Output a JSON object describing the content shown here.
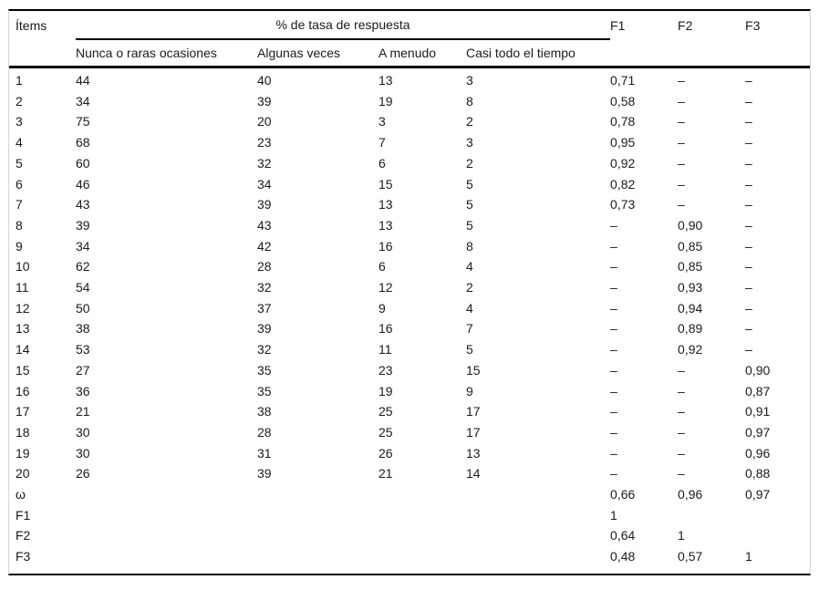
{
  "page": {
    "background": "#ffffff",
    "text_color": "#1b1b1b",
    "rule_color": "#000000",
    "frame_color": "#d6d6d6"
  },
  "table": {
    "header": {
      "items_label": "Ítems",
      "group_label": "% de tasa de respuesta",
      "subcolumns": [
        "Nunca o raras ocasiones",
        "Algunas veces",
        "A menudo",
        "Casi todo el tiempo"
      ],
      "factor_columns": [
        "F1",
        "F2",
        "F3"
      ]
    },
    "rows": [
      {
        "item": "1",
        "responses": [
          "44",
          "40",
          "13",
          "3"
        ],
        "factors": [
          "0,71",
          "–",
          "–"
        ]
      },
      {
        "item": "2",
        "responses": [
          "34",
          "39",
          "19",
          "8"
        ],
        "factors": [
          "0,58",
          "–",
          "–"
        ]
      },
      {
        "item": "3",
        "responses": [
          "75",
          "20",
          "3",
          "2"
        ],
        "factors": [
          "0,78",
          "–",
          "–"
        ]
      },
      {
        "item": "4",
        "responses": [
          "68",
          "23",
          "7",
          "3"
        ],
        "factors": [
          "0,95",
          "–",
          "–"
        ]
      },
      {
        "item": "5",
        "responses": [
          "60",
          "32",
          "6",
          "2"
        ],
        "factors": [
          "0,92",
          "–",
          "–"
        ]
      },
      {
        "item": "6",
        "responses": [
          "46",
          "34",
          "15",
          "5"
        ],
        "factors": [
          "0,82",
          "–",
          "–"
        ]
      },
      {
        "item": "7",
        "responses": [
          "43",
          "39",
          "13",
          "5"
        ],
        "factors": [
          "0,73",
          "–",
          "–"
        ]
      },
      {
        "item": "8",
        "responses": [
          "39",
          "43",
          "13",
          "5"
        ],
        "factors": [
          "–",
          "0,90",
          "–"
        ]
      },
      {
        "item": "9",
        "responses": [
          "34",
          "42",
          "16",
          "8"
        ],
        "factors": [
          "–",
          "0,85",
          "–"
        ]
      },
      {
        "item": "10",
        "responses": [
          "62",
          "28",
          "6",
          "4"
        ],
        "factors": [
          "–",
          "0,85",
          "–"
        ]
      },
      {
        "item": "11",
        "responses": [
          "54",
          "32",
          "12",
          "2"
        ],
        "factors": [
          "–",
          "0,93",
          "–"
        ]
      },
      {
        "item": "12",
        "responses": [
          "50",
          "37",
          "9",
          "4"
        ],
        "factors": [
          "–",
          "0,94",
          "–"
        ]
      },
      {
        "item": "13",
        "responses": [
          "38",
          "39",
          "16",
          "7"
        ],
        "factors": [
          "–",
          "0,89",
          "–"
        ]
      },
      {
        "item": "14",
        "responses": [
          "53",
          "32",
          "11",
          "5"
        ],
        "factors": [
          "–",
          "0,92",
          "–"
        ]
      },
      {
        "item": "15",
        "responses": [
          "27",
          "35",
          "23",
          "15"
        ],
        "factors": [
          "–",
          "–",
          "0,90"
        ]
      },
      {
        "item": "16",
        "responses": [
          "36",
          "35",
          "19",
          "9"
        ],
        "factors": [
          "–",
          "–",
          "0,87"
        ]
      },
      {
        "item": "17",
        "responses": [
          "21",
          "38",
          "25",
          "17"
        ],
        "factors": [
          "–",
          "–",
          "0,91"
        ]
      },
      {
        "item": "18",
        "responses": [
          "30",
          "28",
          "25",
          "17"
        ],
        "factors": [
          "–",
          "–",
          "0,97"
        ]
      },
      {
        "item": "19",
        "responses": [
          "30",
          "31",
          "26",
          "13"
        ],
        "factors": [
          "–",
          "–",
          "0,96"
        ]
      },
      {
        "item": "20",
        "responses": [
          "26",
          "39",
          "21",
          "14"
        ],
        "factors": [
          "–",
          "–",
          "0,88"
        ]
      },
      {
        "item": "ω",
        "responses": [
          "",
          "",
          "",
          ""
        ],
        "factors": [
          "0,66",
          "0,96",
          "0,97"
        ]
      },
      {
        "item": "F1",
        "responses": [
          "",
          "",
          "",
          ""
        ],
        "factors": [
          "1",
          "",
          ""
        ]
      },
      {
        "item": "F2",
        "responses": [
          "",
          "",
          "",
          ""
        ],
        "factors": [
          "0,64",
          "1",
          ""
        ]
      },
      {
        "item": "F3",
        "responses": [
          "",
          "",
          "",
          ""
        ],
        "factors": [
          "0,48",
          "0,57",
          "1"
        ]
      }
    ]
  }
}
